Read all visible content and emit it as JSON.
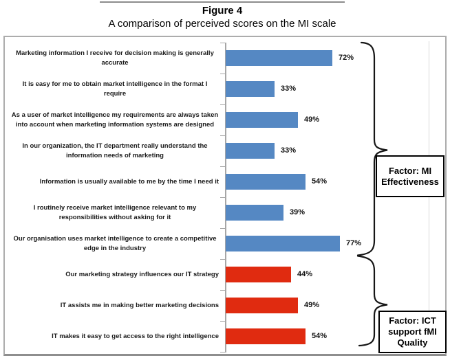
{
  "figure": {
    "title": "Figure 4",
    "subtitle": "A comparison of perceived scores on the MI scale"
  },
  "chart_data": {
    "type": "bar",
    "orientation": "horizontal",
    "title": "Figure 4",
    "subtitle": "A comparison of perceived scores on the MI scale",
    "value_format": "percent",
    "xlim": [
      0,
      100
    ],
    "grid": false,
    "legend": "none",
    "categories": [
      "Marketing information I receive for decision making is generally accurate",
      "It is easy for me to obtain market intelligence in the format I require",
      "As a user of market intelligence my requirements are always taken into account when marketing information systems are designed",
      "In our organization, the IT department really understand the information needs of marketing",
      "Information is usually available to me by the time I need it",
      "I routinely receive market intelligence relevant to my responsibilities without asking for it",
      "Our organisation uses market intelligence to create a competitive edge in the industry",
      "Our marketing strategy influences our IT strategy",
      "IT assists me in making better marketing decisions",
      "IT makes it easy to get access to the right intelligence"
    ],
    "values": [
      72,
      33,
      49,
      33,
      54,
      39,
      77,
      44,
      49,
      54
    ],
    "value_labels": [
      "72%",
      "33%",
      "49%",
      "33%",
      "54%",
      "39%",
      "77%",
      "44%",
      "49%",
      "54%"
    ],
    "bar_colors": [
      "#5588C3",
      "#5588C3",
      "#5588C3",
      "#5588C3",
      "#5588C3",
      "#5588C3",
      "#5588C3",
      "#E02B10",
      "#E02B10",
      "#E02B10"
    ],
    "groups": [
      {
        "label": "Factor: MI Effectiveness",
        "category_start": 1,
        "category_end": 7,
        "color": "#5588C3"
      },
      {
        "label": "Factor: ICT support fMI Quality",
        "category_start": 8,
        "category_end": 10,
        "color": "#E02B10"
      }
    ]
  },
  "annotations": {
    "factor_mi": "Factor: MI Effectiveness",
    "factor_ict": "Factor: ICT support fMI Quality"
  },
  "colors": {
    "blue": "#5588C3",
    "red": "#E02B10",
    "axis_gray": "#A6A6A6",
    "border_gray": "#ACACAC",
    "brace_black": "#161616"
  }
}
